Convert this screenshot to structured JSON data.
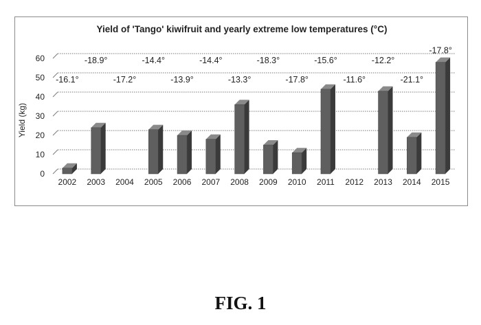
{
  "chart_data": {
    "type": "bar",
    "title": "Yield of 'Tango' kiwifruit and yearly extreme low temperatures (°C)",
    "xlabel": "",
    "ylabel": "Yield (kg)",
    "ylim": [
      0,
      60
    ],
    "yticks": [
      "0",
      "10",
      "20",
      "30",
      "40",
      "50",
      "60"
    ],
    "grid": true,
    "categories": [
      "2002",
      "2003",
      "2004",
      "2005",
      "2006",
      "2007",
      "2008",
      "2009",
      "2010",
      "2011",
      "2012",
      "2013",
      "2014",
      "2015"
    ],
    "values": [
      3,
      24,
      0,
      23,
      20,
      18,
      36,
      15,
      11,
      44,
      0,
      43,
      19,
      58
    ],
    "annotations": [
      "-16.1°",
      "-18.9°",
      "-17.2°",
      "-14.4°",
      "-13.9°",
      "-14.4°",
      "-13.3°",
      "-18.3°",
      "-17.8°",
      "-15.6°",
      "-11.6°",
      "-12.2°",
      "-21.1°",
      "-17.8°"
    ],
    "bar_color": "#5f5f5f"
  },
  "figure_label": "FIG. 1"
}
